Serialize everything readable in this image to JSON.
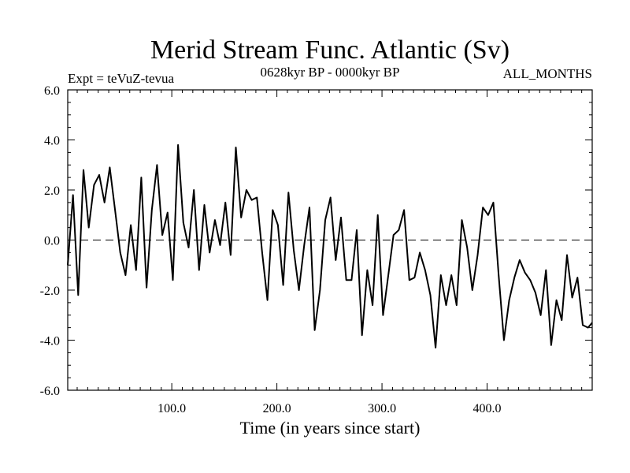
{
  "chart_data": {
    "type": "line",
    "title": "Merid Stream Func. Atlantic (Sv)",
    "subtitle_left": "Expt = teVuZ-tevua",
    "subtitle_center": "0628kyr BP - 0000kyr BP",
    "subtitle_right": "ALL_MONTHS",
    "xlabel": "Time (in years since start)",
    "ylabel": "",
    "xlim": [
      1,
      500
    ],
    "ylim": [
      -6,
      6
    ],
    "x_ticks": [
      100,
      200,
      300,
      400
    ],
    "x_tick_labels": [
      "100.0",
      "200.0",
      "300.0",
      "400.0"
    ],
    "y_ticks": [
      -6,
      -4,
      -2,
      0,
      2,
      4,
      6
    ],
    "y_tick_labels": [
      "-6.0",
      "-4.0",
      "-2.0",
      "0.0",
      "2.0",
      "4.0",
      "6.0"
    ],
    "zero_line": "dashed",
    "grid": false,
    "line_color": "#000000",
    "series": [
      {
        "x": [
          1,
          6,
          11,
          16,
          21,
          26,
          31,
          36,
          41,
          46,
          51,
          56,
          61,
          66,
          71,
          76,
          81,
          86,
          91,
          96,
          101,
          106,
          111,
          116,
          121,
          126,
          131,
          136,
          141,
          146,
          151,
          156,
          161,
          166,
          171,
          176,
          181,
          186,
          191,
          196,
          201,
          206,
          211,
          216,
          221,
          226,
          231,
          236,
          241,
          246,
          251,
          256,
          261,
          266,
          271,
          276,
          281,
          286,
          291,
          296,
          301,
          306,
          311,
          316,
          321,
          326,
          331,
          336,
          341,
          346,
          351,
          356,
          361,
          366,
          371,
          376,
          381,
          386,
          391,
          396,
          401,
          406,
          411,
          416,
          421,
          426,
          431,
          436,
          441,
          446,
          451,
          456,
          461,
          466,
          471,
          476,
          481,
          486,
          491,
          496,
          500
        ],
        "y": [
          -1.0,
          1.8,
          -2.2,
          2.8,
          0.5,
          2.2,
          2.6,
          1.5,
          2.9,
          1.2,
          -0.5,
          -1.4,
          0.6,
          -1.2,
          2.5,
          -1.9,
          1.2,
          3.0,
          0.2,
          1.1,
          -1.6,
          3.8,
          0.7,
          -0.3,
          2.0,
          -1.2,
          1.4,
          -0.5,
          0.8,
          -0.2,
          1.5,
          -0.6,
          3.7,
          0.9,
          2.0,
          1.6,
          1.7,
          -0.5,
          -2.4,
          1.2,
          0.6,
          -1.8,
          1.9,
          -0.4,
          -2.0,
          -0.2,
          1.3,
          -3.6,
          -2.0,
          0.8,
          1.7,
          -0.8,
          0.9,
          -1.6,
          -1.6,
          0.4,
          -3.8,
          -1.2,
          -2.6,
          1.0,
          -3.0,
          -1.4,
          0.2,
          0.4,
          1.2,
          -1.6,
          -1.5,
          -0.5,
          -1.2,
          -2.2,
          -4.3,
          -1.4,
          -2.6,
          -1.4,
          -2.6,
          0.8,
          -0.3,
          -2.0,
          -0.6,
          1.3,
          1.0,
          1.5,
          -1.4,
          -4.0,
          -2.4,
          -1.5,
          -0.8,
          -1.3,
          -1.6,
          -2.1,
          -3.0,
          -1.2,
          -4.2,
          -2.4,
          -3.2,
          -0.6,
          -2.3,
          -1.5,
          -3.4,
          -3.5,
          -3.3
        ]
      }
    ]
  }
}
